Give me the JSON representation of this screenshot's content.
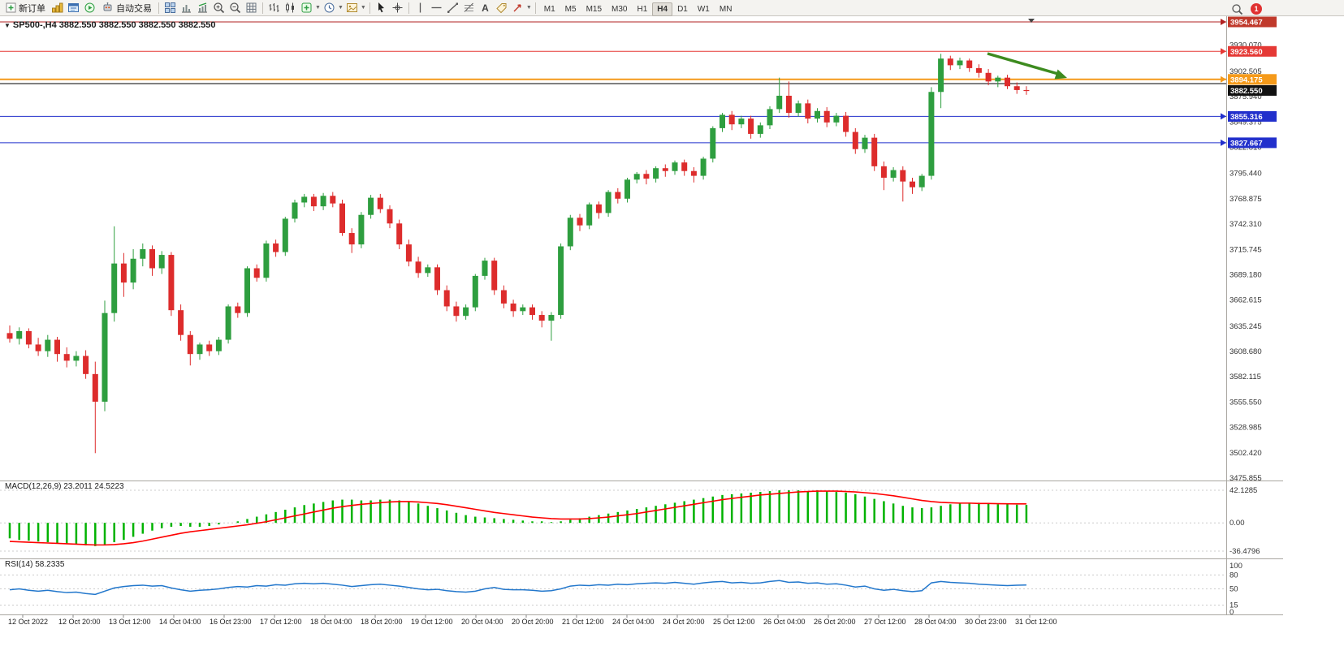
{
  "toolbar": {
    "new_order_label": "新订单",
    "autotrade_label": "自动交易",
    "timeframes": [
      "M1",
      "M5",
      "M15",
      "M30",
      "H1",
      "H4",
      "D1",
      "W1",
      "MN"
    ],
    "active_timeframe": "H4",
    "notification_count": "1",
    "icons": [
      "new-order",
      "charts",
      "market-watch",
      "algo-trading",
      "auto-trading",
      "tile-windows",
      "chart-shift",
      "chart-autoscroll",
      "zoom-in",
      "zoom-out",
      "grid",
      "bar-chart",
      "candle-chart",
      "add-indicator",
      "periods",
      "templates",
      "cursor",
      "crosshair",
      "vertical-line",
      "horizontal-line",
      "trendline",
      "fibonacci",
      "text",
      "label",
      "arrows",
      "search",
      "notifications"
    ]
  },
  "colors": {
    "candle_up": "#2e9e3f",
    "candle_down": "#dd2c2c",
    "macd_hist": "#00b200",
    "macd_signal": "#ff0000",
    "rsi_line": "#2277cc",
    "arrow_green": "#3d8b1f",
    "current_price_box": "#111111"
  },
  "chart_data": {
    "type": "candlestick",
    "title": "SP500-,H4  3882.550 3882.550 3882.550 3882.550",
    "symbol": "SP500-",
    "timeframe": "H4",
    "price_axis": {
      "max": 3954.467,
      "min": 3475.855,
      "tick_labels": [
        "3930.070",
        "3902.505",
        "3875.940",
        "3849.375",
        "3822.810",
        "3795.440",
        "3768.875",
        "3742.310",
        "3715.745",
        "3689.180",
        "3662.615",
        "3635.245",
        "3608.680",
        "3582.115",
        "3555.550",
        "3528.985",
        "3502.420",
        "3475.855"
      ]
    },
    "price_lines": [
      {
        "label": "3954.467",
        "value": 3954.467,
        "color": "#b22222",
        "box_bg": "#c0392b",
        "width": 1
      },
      {
        "label": "3923.560",
        "value": 3923.56,
        "color": "#e53935",
        "box_bg": "#e53935",
        "width": 1
      },
      {
        "label": "3894.175",
        "value": 3894.175,
        "color": "#f59a1a",
        "box_bg": "#f59a1a",
        "width": 2
      },
      {
        "label": "",
        "value": 3889.7,
        "color": "#000000",
        "width": 1
      },
      {
        "label": "3855.316",
        "value": 3855.316,
        "color": "#2230cc",
        "box_bg": "#2230cc",
        "width": 1
      },
      {
        "label": "3827.667",
        "value": 3827.667,
        "color": "#2230cc",
        "box_bg": "#2230cc",
        "width": 1
      }
    ],
    "current_price": {
      "label": "3882.550",
      "value": 3882.55
    },
    "ohlc": [
      [
        3628,
        3636,
        3618,
        3622
      ],
      [
        3622,
        3634,
        3616,
        3630
      ],
      [
        3630,
        3633,
        3612,
        3616
      ],
      [
        3616,
        3623,
        3604,
        3609
      ],
      [
        3609,
        3626,
        3603,
        3621
      ],
      [
        3621,
        3624,
        3598,
        3606
      ],
      [
        3606,
        3613,
        3592,
        3599
      ],
      [
        3599,
        3609,
        3593,
        3604
      ],
      [
        3604,
        3610,
        3580,
        3585
      ],
      [
        3585,
        3598,
        3502,
        3556
      ],
      [
        3556,
        3662,
        3546,
        3649
      ],
      [
        3649,
        3740,
        3640,
        3701
      ],
      [
        3701,
        3712,
        3666,
        3681
      ],
      [
        3681,
        3716,
        3674,
        3706
      ],
      [
        3706,
        3722,
        3698,
        3716
      ],
      [
        3716,
        3720,
        3688,
        3696
      ],
      [
        3696,
        3714,
        3690,
        3710
      ],
      [
        3710,
        3713,
        3646,
        3652
      ],
      [
        3652,
        3658,
        3620,
        3626
      ],
      [
        3626,
        3630,
        3594,
        3606
      ],
      [
        3606,
        3618,
        3600,
        3616
      ],
      [
        3616,
        3620,
        3604,
        3609
      ],
      [
        3609,
        3624,
        3605,
        3621
      ],
      [
        3621,
        3658,
        3617,
        3656
      ],
      [
        3656,
        3660,
        3644,
        3649
      ],
      [
        3649,
        3698,
        3645,
        3696
      ],
      [
        3696,
        3700,
        3682,
        3686
      ],
      [
        3686,
        3725,
        3682,
        3722
      ],
      [
        3722,
        3726,
        3708,
        3713
      ],
      [
        3713,
        3750,
        3709,
        3748
      ],
      [
        3748,
        3768,
        3744,
        3765
      ],
      [
        3765,
        3774,
        3760,
        3771
      ],
      [
        3771,
        3774,
        3756,
        3761
      ],
      [
        3761,
        3775,
        3757,
        3772
      ],
      [
        3772,
        3776,
        3760,
        3764
      ],
      [
        3764,
        3768,
        3730,
        3733
      ],
      [
        3733,
        3738,
        3712,
        3721
      ],
      [
        3721,
        3755,
        3717,
        3752
      ],
      [
        3752,
        3773,
        3748,
        3770
      ],
      [
        3770,
        3774,
        3754,
        3758
      ],
      [
        3758,
        3762,
        3738,
        3743
      ],
      [
        3743,
        3747,
        3716,
        3721
      ],
      [
        3721,
        3726,
        3698,
        3703
      ],
      [
        3703,
        3708,
        3686,
        3691
      ],
      [
        3691,
        3700,
        3687,
        3697
      ],
      [
        3697,
        3700,
        3668,
        3673
      ],
      [
        3673,
        3678,
        3651,
        3656
      ],
      [
        3656,
        3661,
        3640,
        3646
      ],
      [
        3646,
        3658,
        3642,
        3655
      ],
      [
        3655,
        3690,
        3651,
        3688
      ],
      [
        3688,
        3707,
        3684,
        3704
      ],
      [
        3704,
        3707,
        3668,
        3673
      ],
      [
        3673,
        3678,
        3654,
        3659
      ],
      [
        3659,
        3663,
        3645,
        3651
      ],
      [
        3651,
        3658,
        3647,
        3655
      ],
      [
        3655,
        3658,
        3642,
        3647
      ],
      [
        3647,
        3651,
        3634,
        3641
      ],
      [
        3641,
        3650,
        3620,
        3647
      ],
      [
        3647,
        3722,
        3643,
        3719
      ],
      [
        3719,
        3752,
        3715,
        3749
      ],
      [
        3749,
        3753,
        3735,
        3741
      ],
      [
        3741,
        3765,
        3737,
        3763
      ],
      [
        3763,
        3766,
        3748,
        3754
      ],
      [
        3754,
        3778,
        3750,
        3776
      ],
      [
        3776,
        3780,
        3764,
        3769
      ],
      [
        3769,
        3791,
        3765,
        3789
      ],
      [
        3789,
        3797,
        3785,
        3795
      ],
      [
        3795,
        3799,
        3784,
        3790
      ],
      [
        3790,
        3803,
        3786,
        3801
      ],
      [
        3801,
        3805,
        3792,
        3798
      ],
      [
        3798,
        3809,
        3794,
        3807
      ],
      [
        3807,
        3810,
        3793,
        3798
      ],
      [
        3798,
        3802,
        3786,
        3793
      ],
      [
        3793,
        3813,
        3789,
        3811
      ],
      [
        3811,
        3845,
        3807,
        3843
      ],
      [
        3843,
        3859,
        3839,
        3857
      ],
      [
        3857,
        3861,
        3841,
        3847
      ],
      [
        3847,
        3856,
        3843,
        3853
      ],
      [
        3853,
        3856,
        3832,
        3837
      ],
      [
        3837,
        3849,
        3833,
        3846
      ],
      [
        3846,
        3866,
        3842,
        3863
      ],
      [
        3863,
        3896,
        3859,
        3877
      ],
      [
        3877,
        3892,
        3854,
        3859
      ],
      [
        3859,
        3872,
        3855,
        3869
      ],
      [
        3869,
        3873,
        3848,
        3853
      ],
      [
        3853,
        3864,
        3849,
        3861
      ],
      [
        3861,
        3865,
        3844,
        3849
      ],
      [
        3849,
        3859,
        3845,
        3856
      ],
      [
        3856,
        3860,
        3834,
        3839
      ],
      [
        3839,
        3843,
        3816,
        3821
      ],
      [
        3821,
        3836,
        3817,
        3833
      ],
      [
        3833,
        3837,
        3798,
        3803
      ],
      [
        3803,
        3808,
        3778,
        3791
      ],
      [
        3791,
        3802,
        3787,
        3799
      ],
      [
        3799,
        3803,
        3766,
        3787
      ],
      [
        3787,
        3791,
        3774,
        3781
      ],
      [
        3781,
        3795,
        3777,
        3793
      ],
      [
        3793,
        3886,
        3789,
        3881
      ],
      [
        3881,
        3921,
        3864,
        3916
      ],
      [
        3916,
        3919,
        3904,
        3909
      ],
      [
        3909,
        3917,
        3905,
        3914
      ],
      [
        3914,
        3916,
        3902,
        3906
      ],
      [
        3906,
        3910,
        3896,
        3901
      ],
      [
        3901,
        3905,
        3888,
        3892
      ],
      [
        3892,
        3898,
        3886,
        3896
      ],
      [
        3896,
        3899,
        3884,
        3887
      ],
      [
        3887,
        3891,
        3879,
        3883
      ],
      [
        3883,
        3887,
        3878,
        3882.55
      ]
    ],
    "time_axis": [
      "12 Oct 2022",
      "12 Oct 20:00",
      "13 Oct 12:00",
      "14 Oct 04:00",
      "16 Oct 23:00",
      "17 Oct 12:00",
      "18 Oct 04:00",
      "18 Oct 20:00",
      "19 Oct 12:00",
      "20 Oct 04:00",
      "20 Oct 20:00",
      "21 Oct 12:00",
      "24 Oct 04:00",
      "24 Oct 20:00",
      "25 Oct 12:00",
      "26 Oct 04:00",
      "26 Oct 20:00",
      "27 Oct 12:00",
      "28 Oct 04:00",
      "30 Oct 23:00",
      "31 Oct 12:00"
    ],
    "macd": {
      "label": "MACD(12,26,9) 23.2011 24.5223",
      "max": 42.1285,
      "min": -36.4796,
      "axis_labels": [
        "42.1285",
        "0.00",
        "-36.4796"
      ],
      "histogram": [
        -20,
        -22,
        -23,
        -24,
        -25,
        -26,
        -27,
        -28,
        -29,
        -30,
        -28,
        -25,
        -22,
        -18,
        -14,
        -10,
        -7,
        -5,
        -4,
        -5,
        -5,
        -4,
        -2,
        0,
        2,
        5,
        8,
        11,
        14,
        17,
        20,
        23,
        25,
        27,
        29,
        30,
        30,
        29,
        29,
        30,
        30,
        29,
        27,
        25,
        22,
        19,
        16,
        13,
        10,
        8,
        7,
        6,
        5,
        4,
        3,
        2,
        2,
        1,
        2,
        4,
        6,
        8,
        10,
        12,
        14,
        16,
        18,
        20,
        22,
        24,
        26,
        28,
        30,
        32,
        34,
        36,
        37,
        38,
        39,
        40,
        41,
        42,
        42,
        42,
        41,
        42,
        41,
        40,
        39,
        37,
        34,
        31,
        28,
        25,
        22,
        20,
        19,
        20,
        22,
        24,
        25,
        26,
        26,
        25,
        24,
        24,
        23.5,
        23.2
      ],
      "signal": [
        -24,
        -24.5,
        -25,
        -25.5,
        -26,
        -26.5,
        -27,
        -27.5,
        -28,
        -28.5,
        -28.5,
        -28,
        -27,
        -25.5,
        -23.5,
        -21,
        -18.5,
        -16,
        -13.5,
        -11.5,
        -10,
        -8.5,
        -7,
        -5.5,
        -4,
        -2.5,
        -0.5,
        1.5,
        4,
        6.5,
        9,
        11.5,
        14,
        16.5,
        19,
        21,
        22.5,
        24,
        25,
        26,
        27,
        27.5,
        27.5,
        27,
        26,
        25,
        23.5,
        21.5,
        19.5,
        17.5,
        15.5,
        13.5,
        12,
        10.5,
        9,
        7.5,
        6.5,
        5.5,
        5,
        5,
        5,
        5.5,
        6.5,
        7.5,
        9,
        10.5,
        12,
        14,
        16,
        18,
        20,
        22,
        24,
        26,
        28,
        30,
        31.5,
        33,
        34.5,
        36,
        37,
        38,
        39,
        40,
        40.5,
        41,
        41,
        41,
        40.5,
        40,
        39,
        38,
        36.5,
        35,
        33,
        31,
        29,
        27.5,
        26.5,
        26,
        25.5,
        25.5,
        25,
        25,
        24.8,
        24.6,
        24.5,
        24.52
      ]
    },
    "rsi": {
      "label": "RSI(14) 58.2335",
      "axis_labels": [
        "100",
        "80",
        "50",
        "15",
        "0"
      ],
      "levels": [
        80,
        50,
        15
      ],
      "values": [
        48,
        50,
        47,
        45,
        47,
        44,
        42,
        43,
        40,
        38,
        45,
        52,
        55,
        57,
        58,
        56,
        57,
        52,
        48,
        45,
        47,
        48,
        50,
        53,
        55,
        54,
        57,
        56,
        59,
        58,
        61,
        62,
        61,
        62,
        60,
        58,
        55,
        57,
        59,
        60,
        58,
        56,
        53,
        50,
        48,
        49,
        46,
        44,
        43,
        45,
        50,
        53,
        49,
        48,
        48,
        47,
        45,
        46,
        50,
        56,
        58,
        57,
        59,
        58,
        60,
        59,
        61,
        62,
        63,
        62,
        64,
        62,
        60,
        63,
        65,
        66,
        63,
        64,
        62,
        63,
        66,
        68,
        64,
        65,
        62,
        63,
        60,
        61,
        58,
        54,
        56,
        50,
        47,
        49,
        46,
        44,
        46,
        63,
        66,
        64,
        63,
        62,
        60,
        59,
        58,
        57,
        58,
        58.23
      ]
    },
    "annotation_arrow": {
      "shape": "down-right-arrow",
      "color": "#3d8b1f"
    }
  }
}
